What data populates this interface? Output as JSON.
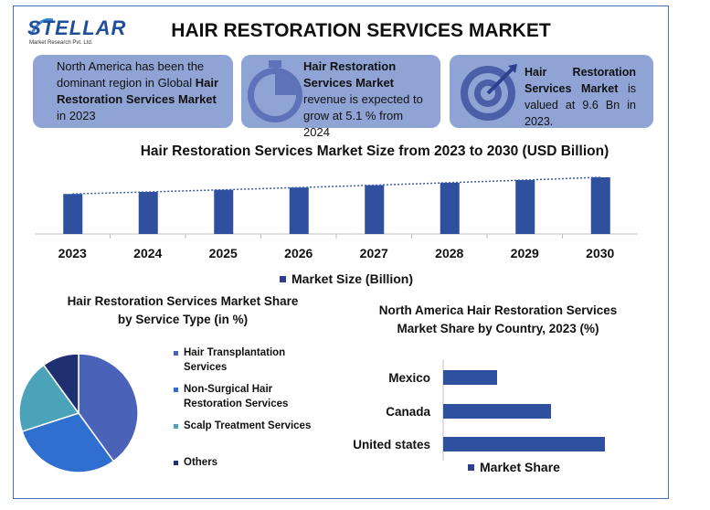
{
  "brand": {
    "name": "STELLAR",
    "tagline": "Market Research Pvt. Ltd."
  },
  "title": "HAIR RESTORATION SERVICES MARKET",
  "info_boxes": {
    "box1": {
      "text_a": "North America has been the dominant region in Global ",
      "text_bold": "Hair Restoration Services Market",
      "text_b": " in 2023"
    },
    "box2": {
      "bold": "Hair Restoration Services Market",
      "text": " revenue is expected to grow at 5.1 % from 2024"
    },
    "box3": {
      "bold": "Hair Restoration Services Market",
      "text": " is valued at 9.6 Bn in 2023."
    }
  },
  "colors": {
    "accent": "#2f4f9f",
    "box_bg": "#8fa4d4",
    "bar": "#2f4f9f",
    "pie": [
      "#4a63b8",
      "#2e6fd0",
      "#4aa3b8",
      "#1e3070"
    ]
  },
  "chart_data": [
    {
      "type": "bar",
      "title": "Hair Restoration Services Market Size from 2023 to 2030 (USD Billion)",
      "categories": [
        "2023",
        "2024",
        "2025",
        "2026",
        "2027",
        "2028",
        "2029",
        "2030"
      ],
      "series": [
        {
          "name": "Market Size (Billion)",
          "values": [
            9.6,
            10.09,
            10.6,
            11.14,
            11.71,
            12.31,
            12.94,
            13.6
          ]
        }
      ],
      "trendline": "dotted",
      "ylim": [
        0,
        13.6
      ],
      "legend": "bottom"
    },
    {
      "type": "pie",
      "title": "Hair Restoration Services Market Share by Service Type (in %)",
      "labels": [
        "Hair Transplantation Services",
        "Non-Surgical Hair Restoration Services",
        "Scalp Treatment Services",
        "Others"
      ],
      "values": [
        40,
        30,
        20,
        10
      ],
      "legend": "right"
    },
    {
      "type": "bar",
      "orientation": "horizontal",
      "title": "North America Hair Restoration Services Market Share by Country, 2023 (%)",
      "categories": [
        "Mexico",
        "Canada",
        "United states"
      ],
      "series": [
        {
          "name": "Market Share",
          "values": [
            10,
            20,
            30
          ]
        }
      ],
      "legend": "bottom"
    }
  ],
  "pie_legend": [
    {
      "label_line1": "Hair Transplantation",
      "label_line2": "Services"
    },
    {
      "label_line1": "Non-Surgical Hair",
      "label_line2": "Restoration Services"
    },
    {
      "label_line1": "Scalp Treatment Services",
      "label_line2": ""
    },
    {
      "label_line1": "Others",
      "label_line2": ""
    }
  ],
  "sub_titles": {
    "pie_line1": "Hair Restoration Services Market Share",
    "pie_line2": "by Service Type (in %)",
    "hbar_line1": "North America Hair Restoration Services",
    "hbar_line2": "Market Share by Country, 2023 (%)"
  },
  "icons": {
    "box2": "stopwatch-icon",
    "box3": "target-icon",
    "logo": "swoosh-icon"
  }
}
